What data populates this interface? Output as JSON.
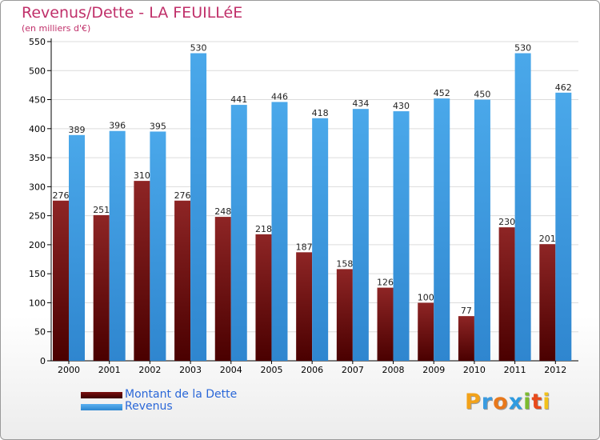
{
  "header": {
    "title": "Revenus/Dette - LA FEUILLéE",
    "subtitle": "(en milliers d'€)"
  },
  "logo": {
    "text": "Proxiti"
  },
  "colors": {
    "dette": "#8b1c1c",
    "revenus": "#3f9ee6",
    "title": "#c0306a",
    "legend_text": "#2a67d8"
  },
  "chart_data": {
    "type": "bar",
    "categories": [
      "2000",
      "2001",
      "2002",
      "2003",
      "2004",
      "2005",
      "2006",
      "2007",
      "2008",
      "2009",
      "2010",
      "2011",
      "2012"
    ],
    "series": [
      {
        "name": "Montant de la Dette",
        "values": [
          276,
          251,
          310,
          276,
          248,
          218,
          187,
          158,
          126,
          100,
          77,
          230,
          201
        ]
      },
      {
        "name": "Revenus",
        "values": [
          389,
          396,
          395,
          530,
          441,
          446,
          418,
          434,
          430,
          452,
          450,
          530,
          462
        ]
      }
    ],
    "ylim": [
      0,
      550
    ],
    "yticks": [
      0,
      50,
      100,
      150,
      200,
      250,
      300,
      350,
      400,
      450,
      500,
      550
    ],
    "grid": true,
    "legend": "bottom-left"
  }
}
